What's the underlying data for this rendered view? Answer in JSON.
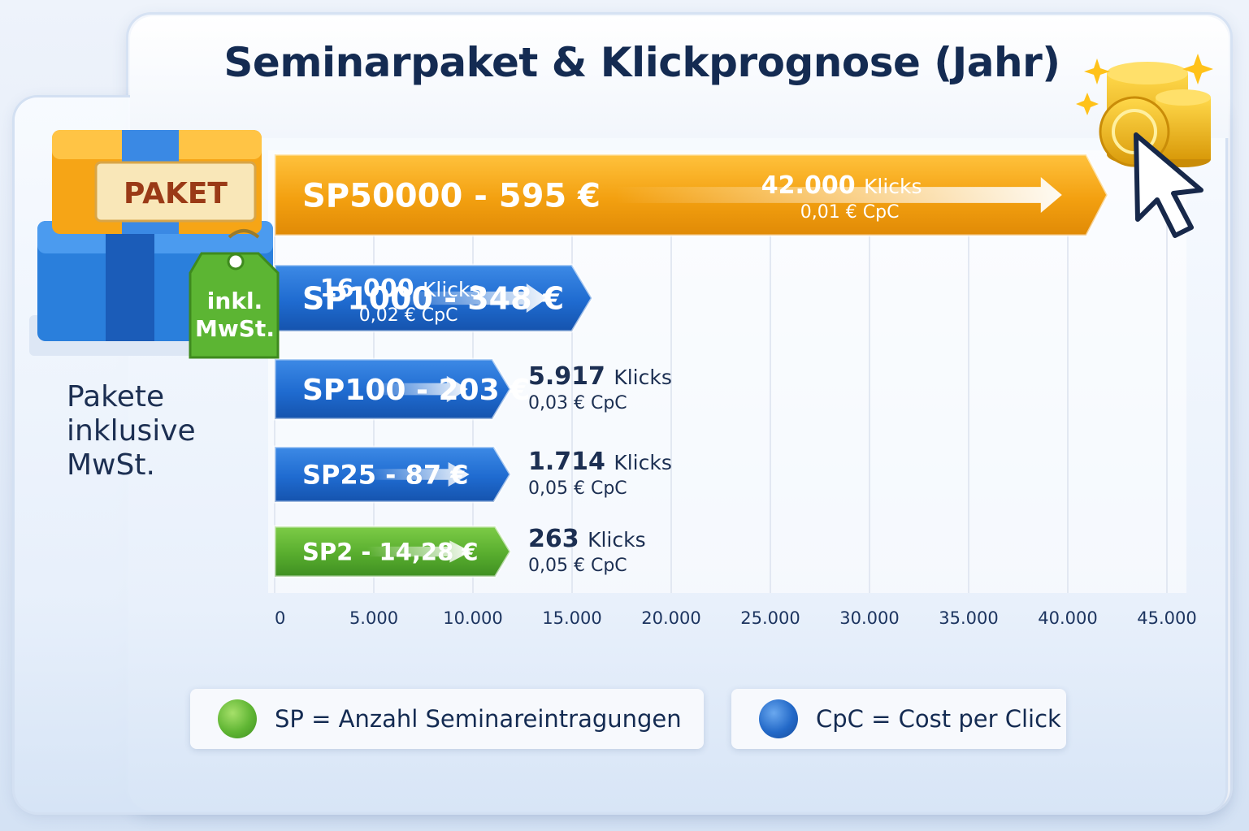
{
  "title": "Seminarpaket & Klickprognose (Jahr)",
  "illustration": {
    "box_label": "PAKET",
    "tag_line1": "inkl.",
    "tag_line2": "MwSt.",
    "icons": [
      "package-box-icon",
      "price-tag-icon",
      "gold-coins-icon",
      "cursor-arrow-icon",
      "sparkle-icon"
    ]
  },
  "side_note": [
    "Pakete",
    "inklusive",
    "MwSt."
  ],
  "colors": {
    "orange": "#f2a20e",
    "blue": "#1f6bd0",
    "green": "#58ad2e",
    "text_dark": "#142b52"
  },
  "chart_data": {
    "type": "bar",
    "orientation": "horizontal",
    "title": "Seminarpaket & Klickprognose (Jahr)",
    "xlim": [
      0,
      45000
    ],
    "xticks": [
      "0",
      "5.000",
      "10.000",
      "15.000",
      "20.000",
      "25.000",
      "30.000",
      "35.000",
      "40.000",
      "45.000"
    ],
    "grid": true,
    "bars": [
      {
        "label": "SP50000 - 595 €",
        "clicks": 42000,
        "clicks_text": "42.000",
        "unit": "Klicks",
        "cpc_text": "0,01 € CpC",
        "color": "orange"
      },
      {
        "label": "SP1000 - 348 €",
        "clicks": 16000,
        "clicks_text": "16.000",
        "unit": "Klicks",
        "cpc_text": "0,02 € CpC",
        "color": "blue"
      },
      {
        "label": "SP100 - 203 €",
        "clicks": 5917,
        "clicks_text": "5.917",
        "unit": "Klicks",
        "cpc_text": "0,03 € CpC",
        "color": "blue"
      },
      {
        "label": "SP25 - 87 €",
        "clicks": 1714,
        "clicks_text": "1.714",
        "unit": "Klicks",
        "cpc_text": "0,05 € CpC",
        "color": "blue"
      },
      {
        "label": "SP2 - 14,28 €",
        "clicks": 263,
        "clicks_text": "263",
        "unit": "Klicks",
        "cpc_text": "0,05 € CpC",
        "color": "green"
      }
    ]
  },
  "legend": [
    {
      "text": "SP = Anzahl Seminareintragungen",
      "color": "green"
    },
    {
      "text": "CpC = Cost per Click",
      "color": "blue"
    }
  ]
}
